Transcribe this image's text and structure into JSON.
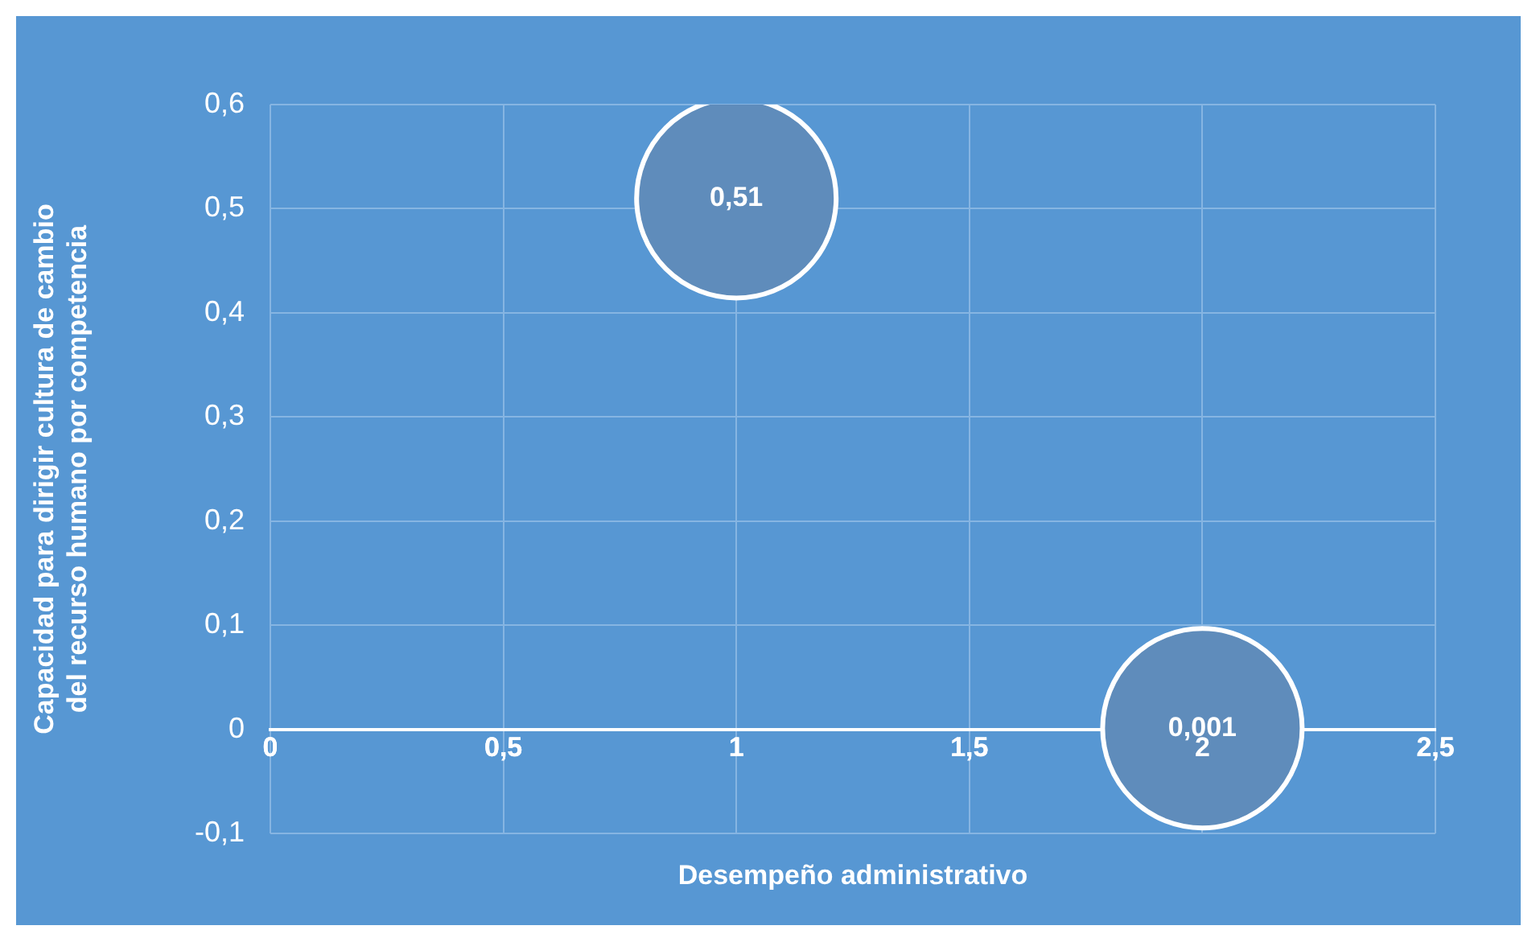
{
  "chart_data": {
    "type": "bubble",
    "xlabel": "Desempeño administrativo",
    "ylabel": "Capacidad para dirigir cultura de cambio del recurso humano por competencia",
    "x": [
      1,
      2
    ],
    "series": [
      {
        "color": "#5f8cbb",
        "values": [
          0.51,
          0.001
        ],
        "sizes": [
          1,
          1
        ],
        "value_labels": [
          "0,51",
          "0,001"
        ]
      }
    ],
    "xlim": [
      0,
      2.5
    ],
    "xticks": [
      {
        "value": 0,
        "label": "0"
      },
      {
        "value": 0.5,
        "label": "0,5"
      },
      {
        "value": 1,
        "label": "1"
      },
      {
        "value": 1.5,
        "label": "1,5"
      },
      {
        "value": 2,
        "label": "2"
      },
      {
        "value": 2.5,
        "label": "2,5"
      }
    ],
    "ylim": [
      -0.1,
      0.6
    ],
    "yticks": [
      {
        "value": -0.1,
        "label": "-0,1"
      },
      {
        "value": 0,
        "label": "0"
      },
      {
        "value": 0.1,
        "label": "0,1"
      },
      {
        "value": 0.2,
        "label": "0,2"
      },
      {
        "value": 0.3,
        "label": "0,3"
      },
      {
        "value": 0.4,
        "label": "0,4"
      },
      {
        "value": 0.5,
        "label": "0,5"
      },
      {
        "value": 0.6,
        "label": "0,6"
      }
    ],
    "grid": true,
    "legend": false
  }
}
